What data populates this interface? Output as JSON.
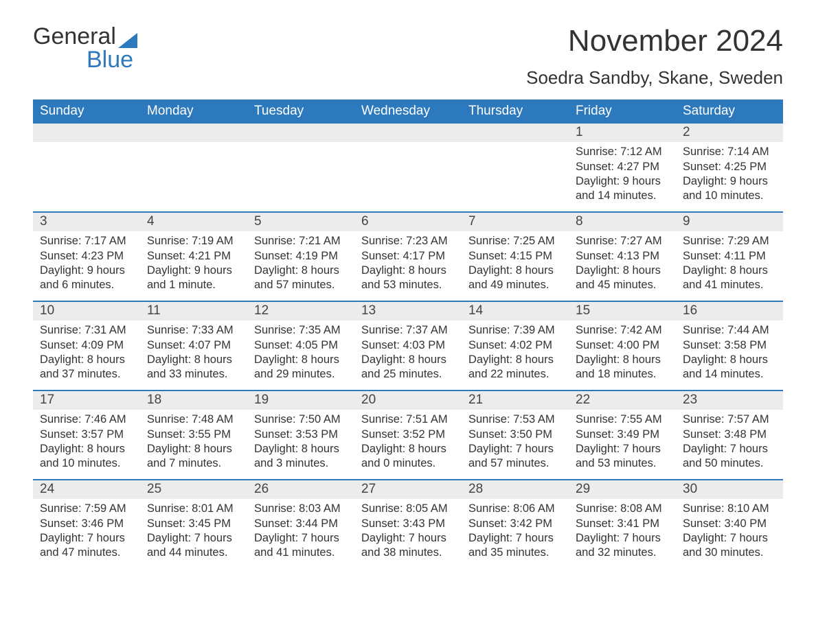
{
  "colors": {
    "header_bg": "#2d79bd",
    "header_text": "#ffffff",
    "daynum_bg": "#ececec",
    "text": "#333333",
    "week_divider": "#2d79bd",
    "page_bg": "#ffffff",
    "logo_blue": "#2d79bd"
  },
  "typography": {
    "font_family": "Segoe UI, Arial, Helvetica, sans-serif",
    "month_title_size": 44,
    "location_size": 26,
    "header_cell_size": 19,
    "daynum_size": 19,
    "body_size": 16.5,
    "logo_size": 34
  },
  "logo": {
    "word1": "General",
    "word2": "Blue"
  },
  "title": "November 2024",
  "location": "Soedra Sandby, Skane, Sweden",
  "labels": {
    "sunrise": "Sunrise",
    "sunset": "Sunset",
    "daylight": "Daylight"
  },
  "weekdays": [
    "Sunday",
    "Monday",
    "Tuesday",
    "Wednesday",
    "Thursday",
    "Friday",
    "Saturday"
  ],
  "weeks": [
    [
      null,
      null,
      null,
      null,
      null,
      {
        "n": 1,
        "sunrise": "7:12 AM",
        "sunset": "4:27 PM",
        "dl_h": 9,
        "dl_m": 14
      },
      {
        "n": 2,
        "sunrise": "7:14 AM",
        "sunset": "4:25 PM",
        "dl_h": 9,
        "dl_m": 10
      }
    ],
    [
      {
        "n": 3,
        "sunrise": "7:17 AM",
        "sunset": "4:23 PM",
        "dl_h": 9,
        "dl_m": 6
      },
      {
        "n": 4,
        "sunrise": "7:19 AM",
        "sunset": "4:21 PM",
        "dl_h": 9,
        "dl_m": 1
      },
      {
        "n": 5,
        "sunrise": "7:21 AM",
        "sunset": "4:19 PM",
        "dl_h": 8,
        "dl_m": 57
      },
      {
        "n": 6,
        "sunrise": "7:23 AM",
        "sunset": "4:17 PM",
        "dl_h": 8,
        "dl_m": 53
      },
      {
        "n": 7,
        "sunrise": "7:25 AM",
        "sunset": "4:15 PM",
        "dl_h": 8,
        "dl_m": 49
      },
      {
        "n": 8,
        "sunrise": "7:27 AM",
        "sunset": "4:13 PM",
        "dl_h": 8,
        "dl_m": 45
      },
      {
        "n": 9,
        "sunrise": "7:29 AM",
        "sunset": "4:11 PM",
        "dl_h": 8,
        "dl_m": 41
      }
    ],
    [
      {
        "n": 10,
        "sunrise": "7:31 AM",
        "sunset": "4:09 PM",
        "dl_h": 8,
        "dl_m": 37
      },
      {
        "n": 11,
        "sunrise": "7:33 AM",
        "sunset": "4:07 PM",
        "dl_h": 8,
        "dl_m": 33
      },
      {
        "n": 12,
        "sunrise": "7:35 AM",
        "sunset": "4:05 PM",
        "dl_h": 8,
        "dl_m": 29
      },
      {
        "n": 13,
        "sunrise": "7:37 AM",
        "sunset": "4:03 PM",
        "dl_h": 8,
        "dl_m": 25
      },
      {
        "n": 14,
        "sunrise": "7:39 AM",
        "sunset": "4:02 PM",
        "dl_h": 8,
        "dl_m": 22
      },
      {
        "n": 15,
        "sunrise": "7:42 AM",
        "sunset": "4:00 PM",
        "dl_h": 8,
        "dl_m": 18
      },
      {
        "n": 16,
        "sunrise": "7:44 AM",
        "sunset": "3:58 PM",
        "dl_h": 8,
        "dl_m": 14
      }
    ],
    [
      {
        "n": 17,
        "sunrise": "7:46 AM",
        "sunset": "3:57 PM",
        "dl_h": 8,
        "dl_m": 10
      },
      {
        "n": 18,
        "sunrise": "7:48 AM",
        "sunset": "3:55 PM",
        "dl_h": 8,
        "dl_m": 7
      },
      {
        "n": 19,
        "sunrise": "7:50 AM",
        "sunset": "3:53 PM",
        "dl_h": 8,
        "dl_m": 3
      },
      {
        "n": 20,
        "sunrise": "7:51 AM",
        "sunset": "3:52 PM",
        "dl_h": 8,
        "dl_m": 0
      },
      {
        "n": 21,
        "sunrise": "7:53 AM",
        "sunset": "3:50 PM",
        "dl_h": 7,
        "dl_m": 57
      },
      {
        "n": 22,
        "sunrise": "7:55 AM",
        "sunset": "3:49 PM",
        "dl_h": 7,
        "dl_m": 53
      },
      {
        "n": 23,
        "sunrise": "7:57 AM",
        "sunset": "3:48 PM",
        "dl_h": 7,
        "dl_m": 50
      }
    ],
    [
      {
        "n": 24,
        "sunrise": "7:59 AM",
        "sunset": "3:46 PM",
        "dl_h": 7,
        "dl_m": 47
      },
      {
        "n": 25,
        "sunrise": "8:01 AM",
        "sunset": "3:45 PM",
        "dl_h": 7,
        "dl_m": 44
      },
      {
        "n": 26,
        "sunrise": "8:03 AM",
        "sunset": "3:44 PM",
        "dl_h": 7,
        "dl_m": 41
      },
      {
        "n": 27,
        "sunrise": "8:05 AM",
        "sunset": "3:43 PM",
        "dl_h": 7,
        "dl_m": 38
      },
      {
        "n": 28,
        "sunrise": "8:06 AM",
        "sunset": "3:42 PM",
        "dl_h": 7,
        "dl_m": 35
      },
      {
        "n": 29,
        "sunrise": "8:08 AM",
        "sunset": "3:41 PM",
        "dl_h": 7,
        "dl_m": 32
      },
      {
        "n": 30,
        "sunrise": "8:10 AM",
        "sunset": "3:40 PM",
        "dl_h": 7,
        "dl_m": 30
      }
    ]
  ]
}
